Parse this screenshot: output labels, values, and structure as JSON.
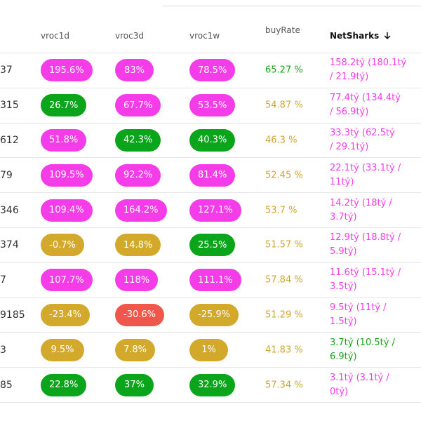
{
  "header": {
    "vroc1d": "vroc1d",
    "vroc3d": "vroc3d",
    "vroc1w": "vroc1w",
    "buyRate": "buyRate",
    "netSharks": "NetSharks",
    "sort_icon": "arrow-down-icon"
  },
  "rows": [
    {
      "id": "37",
      "v1d": "195.6%",
      "v1d_color": "magenta",
      "v3d": "83%",
      "v3d_color": "magenta",
      "v1w": "78.5%",
      "v1w_color": "magenta",
      "buy": "65.27 %",
      "buy_color": "green",
      "net1": "158.2tỷ (180.1tỷ",
      "net2": "/ 21.9tỷ)",
      "net_color": "magenta"
    },
    {
      "id": "315",
      "v1d": "26.7%",
      "v1d_color": "green",
      "v3d": "67.7%",
      "v3d_color": "magenta",
      "v1w": "53.5%",
      "v1w_color": "magenta",
      "buy": "54.87 %",
      "buy_color": "gold",
      "net1": "77.4tỷ (134.4tỷ",
      "net2": "/ 56.9tỷ)",
      "net_color": "magenta"
    },
    {
      "id": "612",
      "v1d": "51.8%",
      "v1d_color": "magenta",
      "v3d": "42.3%",
      "v3d_color": "green",
      "v1w": "40.3%",
      "v1w_color": "green",
      "buy": "46.3 %",
      "buy_color": "gold",
      "net1": "33.3tỷ (62.5tỷ",
      "net2": "/ 29.1tỷ)",
      "net_color": "magenta"
    },
    {
      "id": "79",
      "v1d": "109.5%",
      "v1d_color": "magenta",
      "v3d": "92.2%",
      "v3d_color": "magenta",
      "v1w": "81.4%",
      "v1w_color": "magenta",
      "buy": "52.45 %",
      "buy_color": "gold",
      "net1": "22.1tỷ (33.1tỷ /",
      "net2": "11tỷ)",
      "net_color": "magenta"
    },
    {
      "id": "346",
      "v1d": "109.4%",
      "v1d_color": "magenta",
      "v3d": "164.2%",
      "v3d_color": "magenta",
      "v1w": "127.1%",
      "v1w_color": "magenta",
      "buy": "53.7 %",
      "buy_color": "gold",
      "net1": "14.2tỷ (18tỷ /",
      "net2": "3.7tỷ)",
      "net_color": "magenta"
    },
    {
      "id": "374",
      "v1d": "-0.7%",
      "v1d_color": "gold",
      "v3d": "14.8%",
      "v3d_color": "gold",
      "v1w": "25.5%",
      "v1w_color": "green",
      "buy": "51.57 %",
      "buy_color": "gold",
      "net1": "12.9tỷ (18.8tỷ /",
      "net2": "5.9tỷ)",
      "net_color": "magenta"
    },
    {
      "id": "7",
      "v1d": "107.7%",
      "v1d_color": "magenta",
      "v3d": "118%",
      "v3d_color": "magenta",
      "v1w": "111.1%",
      "v1w_color": "magenta",
      "buy": "57.84 %",
      "buy_color": "gold",
      "net1": "11.6tỷ (15.1tỷ /",
      "net2": "3.5tỷ)",
      "net_color": "magenta"
    },
    {
      "id": "9185",
      "v1d": "-23.4%",
      "v1d_color": "gold",
      "v3d": "-30.6%",
      "v3d_color": "red",
      "v1w": "-25.9%",
      "v1w_color": "gold",
      "buy": "51.29 %",
      "buy_color": "gold",
      "net1": "9.5tỷ (11tỷ /",
      "net2": "1.5tỷ)",
      "net_color": "magenta"
    },
    {
      "id": "3",
      "v1d": "9.5%",
      "v1d_color": "gold",
      "v3d": "7.8%",
      "v3d_color": "gold",
      "v1w": "1%",
      "v1w_color": "gold",
      "buy": "41.83 %",
      "buy_color": "gold",
      "net1": "3.7tỷ (10.5tỷ /",
      "net2": "6.9tỷ)",
      "net_color": "green"
    },
    {
      "id": "85",
      "v1d": "22.8%",
      "v1d_color": "green",
      "v3d": "37%",
      "v3d_color": "green",
      "v1w": "32.9%",
      "v1w_color": "green",
      "buy": "57.34 %",
      "buy_color": "gold",
      "net1": "3.1tỷ (3.1tỷ /",
      "net2": "0tỷ)",
      "net_color": "magenta"
    }
  ]
}
